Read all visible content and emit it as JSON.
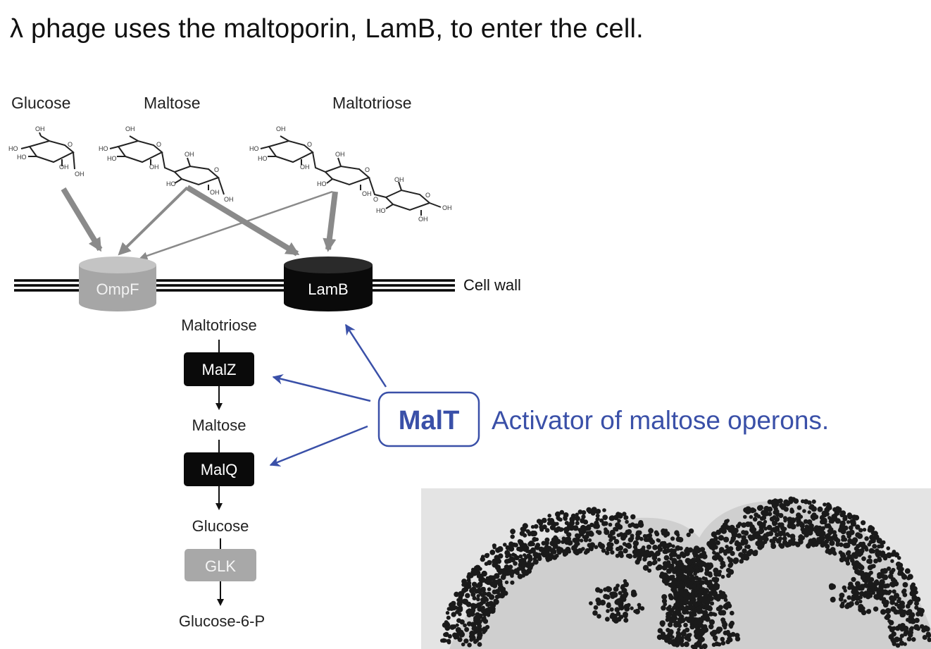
{
  "title": "λ phage uses the maltoporin, LamB, to enter the cell.",
  "sugars": {
    "glucose": "Glucose",
    "maltose": "Maltose",
    "maltotriose": "Maltotriose"
  },
  "structure_labels": {
    "oh": "OH",
    "ho": "HO",
    "o": "O"
  },
  "porins": {
    "ompf": "OmpF",
    "lamb": "LamB"
  },
  "cell_wall_label": "Cell wall",
  "pathway": {
    "maltotriose": "Maltotriose",
    "malz": "MalZ",
    "maltose": "Maltose",
    "malq": "MalQ",
    "glucose": "Glucose",
    "glk": "GLK",
    "glucose6p": "Glucose-6-P"
  },
  "malt": {
    "label": "MalT",
    "description": "Activator of maltose operons."
  },
  "colors": {
    "accent_blue": "#3a50a8",
    "arrow_gray": "#8a8a8a",
    "ompf_fill": "#a6a6a6",
    "glk_fill": "#a8a8a8",
    "box_black": "#0a0a0a"
  }
}
